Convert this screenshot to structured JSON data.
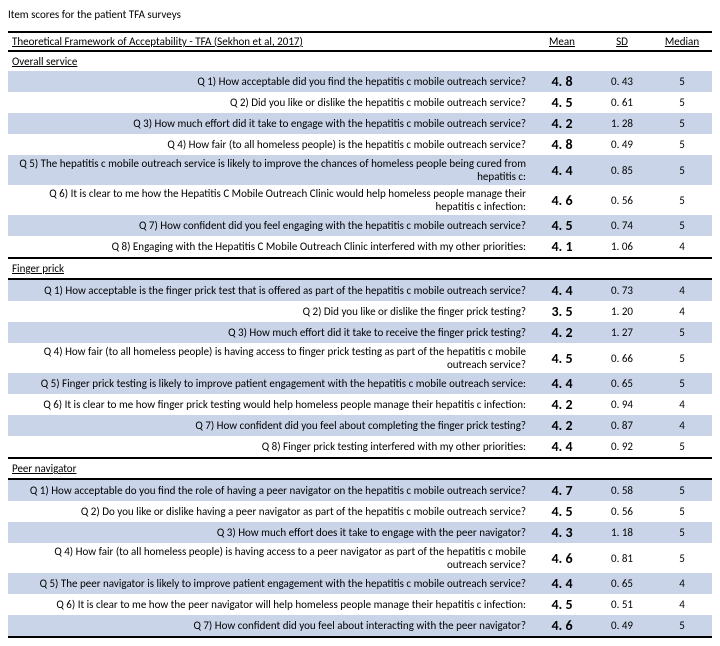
{
  "title": "Item scores for the patient TFA surveys",
  "columns": {
    "question": "Theoretical Framework of Acceptability - TFA (Sekhon et al, 2017)",
    "mean": "Mean",
    "sd": "SD",
    "median": "Median"
  },
  "sections": [
    {
      "label": "Overall service",
      "rows": [
        {
          "q": "Q 1) How acceptable did you find the hepatitis c mobile outreach service?",
          "mean": "4. 8",
          "sd": "0. 43",
          "median": "5"
        },
        {
          "q": "Q 2) Did you like or dislike the hepatitis c mobile outreach service?",
          "mean": "4. 5",
          "sd": "0. 61",
          "median": "5"
        },
        {
          "q": "Q 3) How much effort did it take to engage with the hepatitis c mobile outreach service?",
          "mean": "4. 2",
          "sd": "1. 28",
          "median": "5"
        },
        {
          "q": "Q 4) How fair (to all homeless people) is the hepatitis c mobile outreach service?",
          "mean": "4. 8",
          "sd": "0. 49",
          "median": "5"
        },
        {
          "q": "Q 5) The hepatitis c mobile outreach service is likely to improve the chances of homeless people being cured from hepatitis c:",
          "mean": "4. 4",
          "sd": "0. 85",
          "median": "5"
        },
        {
          "q": "Q 6) It is clear to me how the Hepatitis C Mobile Outreach Clinic would help homeless people manage their hepatitis c infection:",
          "mean": "4. 6",
          "sd": "0. 56",
          "median": "5"
        },
        {
          "q": "Q 7) How confident did you feel engaging with the hepatitis c mobile outreach service?",
          "mean": "4. 5",
          "sd": "0. 74",
          "median": "5"
        },
        {
          "q": "Q 8) Engaging with the Hepatitis C Mobile Outreach Clinic interfered with my other priorities:",
          "mean": "4. 1",
          "sd": "1. 06",
          "median": "4"
        }
      ]
    },
    {
      "label": "Finger prick",
      "rows": [
        {
          "q": "Q 1) How acceptable is the finger prick test that is offered as part of the hepatitis c mobile outreach service?",
          "mean": "4. 4",
          "sd": "0. 73",
          "median": "4"
        },
        {
          "q": "Q 2) Did you like or dislike the finger prick testing?",
          "mean": "3. 5",
          "sd": "1. 20",
          "median": "4"
        },
        {
          "q": "Q 3) How much effort did it take to receive the finger prick testing?",
          "mean": "4. 2",
          "sd": "1. 27",
          "median": "5"
        },
        {
          "q": "Q 4) How fair (to all homeless people) is having access to finger prick testing as part of the hepatitis c mobile outreach service?",
          "mean": "4. 5",
          "sd": "0. 66",
          "median": "5"
        },
        {
          "q": "Q 5) Finger prick testing is likely to improve patient engagement with the hepatitis c mobile outreach service:",
          "mean": "4. 4",
          "sd": "0. 65",
          "median": "5"
        },
        {
          "q": "Q 6) It is clear to me how finger prick testing would help homeless people manage their hepatitis c infection:",
          "mean": "4. 2",
          "sd": "0. 94",
          "median": "4"
        },
        {
          "q": "Q 7) How confident did you feel about completing the finger prick testing?",
          "mean": "4. 2",
          "sd": "0. 87",
          "median": "4"
        },
        {
          "q": "Q 8) Finger prick testing interfered with my other priorities:",
          "mean": "4. 4",
          "sd": "0. 92",
          "median": "5"
        }
      ]
    },
    {
      "label": "Peer navigator",
      "rows": [
        {
          "q": "Q 1) How acceptable do you find the role of having a peer navigator on the hepatitis c mobile outreach service?",
          "mean": "4. 7",
          "sd": "0. 58",
          "median": "5"
        },
        {
          "q": "Q 2) Do you like or dislike having a peer navigator as part of the hepatitis c mobile outreach service?",
          "mean": "4. 5",
          "sd": "0. 56",
          "median": "5"
        },
        {
          "q": "Q 3) How much effort does it take to engage with the peer navigator?",
          "mean": "4. 3",
          "sd": "1. 18",
          "median": "5"
        },
        {
          "q": "Q 4) How fair (to all homeless people) is having access to a peer navigator as part of the hepatitis c mobile outreach service?",
          "mean": "4. 6",
          "sd": "0. 81",
          "median": "5"
        },
        {
          "q": "Q 5) The peer navigator is likely to improve patient engagement with the hepatitis c mobile outreach service?",
          "mean": "4. 4",
          "sd": "0. 65",
          "median": "4"
        },
        {
          "q": "Q 6) It is clear to me how the peer navigator will help homeless people manage their hepatitis c infection:",
          "mean": "4. 5",
          "sd": "0. 51",
          "median": "4"
        },
        {
          "q": "Q 7) How confident did you feel about interacting with the peer navigator?",
          "mean": "4. 6",
          "sd": "0. 49",
          "median": "5"
        }
      ]
    }
  ],
  "style": {
    "stripe_color": "#c9d4e8",
    "border_color": "#000000",
    "font_family": "Calibri, Arial, sans-serif",
    "title_fontsize": 11,
    "cell_fontsize": 11,
    "mean_fontsize": 14
  }
}
